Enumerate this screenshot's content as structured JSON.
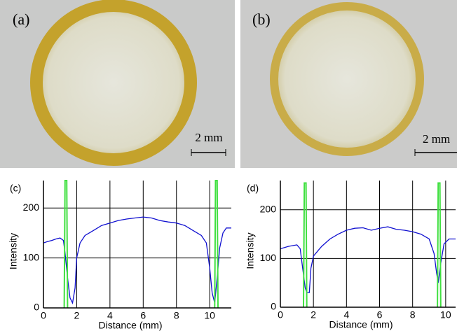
{
  "photos": [
    {
      "label": "(a)",
      "scale_bar": "2 mm"
    },
    {
      "label": "(b)",
      "scale_bar": "2 mm"
    }
  ],
  "chart_data": [
    {
      "type": "line",
      "panel_label": "(c)",
      "x_label": "Distance (mm)",
      "y_label": "Intensity",
      "xlim": [
        0,
        11.3
      ],
      "ylim": [
        0,
        255
      ],
      "xticks": [
        0,
        2,
        4,
        6,
        8,
        10
      ],
      "yticks": [
        0,
        100,
        200
      ],
      "grid": true,
      "series": [
        {
          "color": "#1010d0",
          "x": [
            0,
            0.25,
            0.5,
            0.75,
            1.0,
            1.2,
            1.3,
            1.45,
            1.6,
            1.75,
            1.9,
            2.0,
            2.2,
            2.5,
            3,
            3.5,
            4,
            4.5,
            5,
            5.5,
            6,
            6.5,
            7,
            7.5,
            8,
            8.5,
            9,
            9.5,
            9.8,
            10.0,
            10.15,
            10.3,
            10.45,
            10.6,
            10.8,
            11,
            11.3
          ],
          "values": [
            130,
            133,
            135,
            138,
            140,
            135,
            110,
            60,
            20,
            10,
            40,
            100,
            130,
            145,
            155,
            165,
            170,
            175,
            178,
            180,
            182,
            180,
            175,
            172,
            170,
            165,
            155,
            145,
            130,
            80,
            30,
            10,
            60,
            120,
            150,
            160,
            160
          ]
        },
        {
          "color": "#40e040",
          "x": [
            1.25,
            1.3,
            1.4,
            1.45,
            1.45,
            10.3,
            10.35,
            10.45,
            10.5
          ],
          "values": [
            0,
            255,
            255,
            0,
            null,
            0,
            255,
            255,
            0
          ]
        }
      ]
    },
    {
      "type": "line",
      "panel_label": "(d)",
      "x_label": "Distance (mm)",
      "y_label": "Intensity",
      "xlim": [
        0,
        10.6
      ],
      "ylim": [
        0,
        260
      ],
      "xticks": [
        0,
        2,
        4,
        6,
        8,
        10
      ],
      "yticks": [
        0,
        100,
        200
      ],
      "grid": true,
      "series": [
        {
          "color": "#1010d0",
          "x": [
            0,
            0.5,
            1.0,
            1.2,
            1.35,
            1.5,
            1.6,
            1.75,
            1.85,
            2.0,
            2.5,
            3,
            3.5,
            4,
            4.5,
            5,
            5.5,
            6,
            6.5,
            7,
            7.5,
            8,
            8.5,
            9,
            9.3,
            9.45,
            9.55,
            9.7,
            9.9,
            10.2,
            10.6
          ],
          "values": [
            120,
            125,
            128,
            120,
            80,
            40,
            30,
            30,
            80,
            105,
            125,
            140,
            150,
            158,
            162,
            163,
            158,
            162,
            165,
            160,
            158,
            155,
            150,
            140,
            110,
            70,
            50,
            90,
            130,
            140,
            140
          ]
        },
        {
          "color": "#40e040",
          "x": [
            1.4,
            1.45,
            1.55,
            1.6,
            1.6,
            9.5,
            9.55,
            9.65,
            9.7
          ],
          "values": [
            0,
            255,
            255,
            0,
            null,
            0,
            255,
            255,
            0
          ]
        }
      ]
    }
  ]
}
